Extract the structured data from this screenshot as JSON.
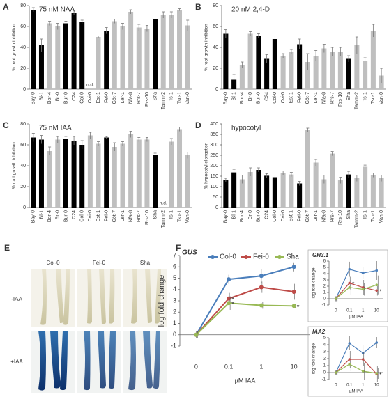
{
  "chart_data": [
    {
      "type": "bar",
      "panel": "A",
      "title": "75 nM NAA",
      "ylabel": "% root growth inhibition",
      "categories": [
        "Bay-0",
        "Bl-1",
        "Bor-4",
        "Br-0",
        "Bur-0",
        "C24",
        "Col-0",
        "Cvi-0",
        "Est-1",
        "Fei-0",
        "Göt-7",
        "Ler-1",
        "Nfa-8",
        "Rrs-7",
        "Rrs-10",
        "Sha",
        "Tamm-2",
        "Ts-1",
        "Tsu-1",
        "Van-0"
      ],
      "values": [
        76,
        42,
        63,
        60,
        63,
        73,
        64,
        null,
        50,
        56,
        65,
        60,
        74,
        59,
        58,
        67,
        71,
        71,
        76,
        61
      ],
      "errors": [
        2,
        6,
        2,
        3,
        2,
        2,
        2,
        null,
        1,
        3,
        2,
        3,
        2,
        3,
        3,
        2,
        3,
        3,
        1,
        5
      ],
      "value_labels": [
        null,
        null,
        null,
        null,
        null,
        null,
        null,
        "n.d.",
        null,
        null,
        null,
        null,
        null,
        null,
        null,
        null,
        null,
        null,
        null,
        null
      ],
      "colors": [
        "#000000",
        "#000000",
        "#bfbfbf",
        "#bfbfbf",
        "#000000",
        "#000000",
        "#000000",
        "#bfbfbf",
        "#bfbfbf",
        "#000000",
        "#bfbfbf",
        "#bfbfbf",
        "#bfbfbf",
        "#bfbfbf",
        "#bfbfbf",
        "#000000",
        "#bfbfbf",
        "#bfbfbf",
        "#bfbfbf",
        "#bfbfbf"
      ],
      "ylim": [
        0,
        80
      ],
      "yticks": [
        0,
        20,
        40,
        60,
        80
      ]
    },
    {
      "type": "bar",
      "panel": "B",
      "title": "20 nM 2,4-D",
      "ylabel": "% root growth inhibition",
      "categories": [
        "Bay-0",
        "Bl-1",
        "Bor-4",
        "Br-0",
        "Bur-0",
        "C24",
        "Col-0",
        "Cvi-0",
        "Est-1",
        "Fei-0",
        "Göt-7",
        "Ler-1",
        "Nfa-8",
        "Rrs-7",
        "Rrs-10",
        "Sha",
        "Tamm-2",
        "Ts-1",
        "Tsu-1",
        "Van-0"
      ],
      "values": [
        53,
        9,
        23,
        53,
        51,
        29,
        48,
        32,
        36,
        43,
        26,
        32,
        39,
        36,
        36,
        29,
        42,
        27,
        56,
        13
      ],
      "errors": [
        4,
        5,
        3,
        2,
        2,
        4,
        3,
        2,
        2,
        5,
        8,
        5,
        4,
        4,
        4,
        3,
        8,
        3,
        6,
        7
      ],
      "colors": [
        "#000000",
        "#000000",
        "#bfbfbf",
        "#bfbfbf",
        "#000000",
        "#000000",
        "#000000",
        "#bfbfbf",
        "#bfbfbf",
        "#000000",
        "#bfbfbf",
        "#bfbfbf",
        "#bfbfbf",
        "#bfbfbf",
        "#bfbfbf",
        "#000000",
        "#bfbfbf",
        "#bfbfbf",
        "#bfbfbf",
        "#bfbfbf"
      ],
      "ylim": [
        0,
        80
      ],
      "yticks": [
        0,
        20,
        40,
        60,
        80
      ]
    },
    {
      "type": "bar",
      "panel": "C",
      "title": "75 nM IAA",
      "ylabel": "% root growth inhibition",
      "categories": [
        "Bay-0",
        "Bl-1",
        "Bor-4",
        "Br-0",
        "Bur-0",
        "C24",
        "Col-0",
        "Cvi-0",
        "Est-1",
        "Fei-0",
        "Göt-7",
        "Ler-1",
        "Nfa-8",
        "Rrs-7",
        "Rrs-10",
        "Sha",
        "Tamm-2",
        "Ts-1",
        "Tsu-1",
        "Van-0"
      ],
      "values": [
        67,
        65,
        54,
        65,
        66,
        64,
        60,
        69,
        61,
        67,
        58,
        61,
        70,
        65,
        65,
        50,
        null,
        63,
        75,
        50
      ],
      "errors": [
        4,
        4,
        4,
        3,
        2,
        4,
        4,
        3,
        2,
        1,
        4,
        2,
        3,
        2,
        2,
        2,
        null,
        3,
        2,
        3
      ],
      "value_labels": [
        null,
        null,
        null,
        null,
        null,
        null,
        null,
        null,
        null,
        null,
        null,
        null,
        null,
        null,
        null,
        null,
        "n.d.",
        null,
        null,
        null
      ],
      "colors": [
        "#000000",
        "#000000",
        "#bfbfbf",
        "#bfbfbf",
        "#000000",
        "#000000",
        "#000000",
        "#bfbfbf",
        "#bfbfbf",
        "#000000",
        "#bfbfbf",
        "#bfbfbf",
        "#bfbfbf",
        "#bfbfbf",
        "#bfbfbf",
        "#000000",
        "#bfbfbf",
        "#bfbfbf",
        "#bfbfbf",
        "#bfbfbf"
      ],
      "ylim": [
        0,
        80
      ],
      "yticks": [
        0,
        20,
        40,
        60,
        80
      ]
    },
    {
      "type": "bar",
      "panel": "D",
      "title": "hypocotyl",
      "ylabel": "% hypocotyl elongation",
      "categories": [
        "Bay-0",
        "Bl-1",
        "Bor-4",
        "Br-0",
        "Bur-0",
        "C24",
        "Col-0",
        "Cvi-0",
        "Est-1",
        "Fei-0",
        "Göt-7",
        "Ler-1",
        "Nfa-8",
        "Rrs-7",
        "Rrs-10",
        "Sha",
        "Tamm-2",
        "Ts-1",
        "Tsu-1",
        "Van-0"
      ],
      "values": [
        130,
        168,
        135,
        170,
        180,
        152,
        145,
        165,
        158,
        115,
        370,
        215,
        135,
        258,
        130,
        158,
        140,
        195,
        155,
        140
      ],
      "errors": [
        10,
        15,
        20,
        20,
        10,
        10,
        10,
        10,
        10,
        10,
        10,
        15,
        20,
        10,
        15,
        15,
        15,
        8,
        10,
        15
      ],
      "colors": [
        "#000000",
        "#000000",
        "#bfbfbf",
        "#bfbfbf",
        "#000000",
        "#000000",
        "#000000",
        "#bfbfbf",
        "#bfbfbf",
        "#000000",
        "#bfbfbf",
        "#bfbfbf",
        "#bfbfbf",
        "#bfbfbf",
        "#bfbfbf",
        "#000000",
        "#bfbfbf",
        "#bfbfbf",
        "#bfbfbf",
        "#bfbfbf"
      ],
      "ylim": [
        0,
        400
      ],
      "yticks": [
        0,
        50,
        100,
        150,
        200,
        250,
        300,
        350,
        400
      ]
    },
    {
      "type": "line",
      "panel": "F",
      "title": "GUS",
      "ylabel": "log fold change",
      "xlabel": "µM IAA",
      "categories": [
        "0",
        "0.1",
        "1",
        "10"
      ],
      "ylim": [
        -1,
        7
      ],
      "yticks": [
        -1,
        0,
        1,
        2,
        3,
        4,
        5,
        6,
        7
      ],
      "legend": true,
      "series": [
        {
          "name": "Col-0",
          "color": "#4a7ebb",
          "values": [
            0,
            4.9,
            5.2,
            6.0
          ],
          "errors": [
            0.3,
            0.4,
            0.6,
            0.4
          ]
        },
        {
          "name": "Fei-0",
          "color": "#be4b48",
          "values": [
            0,
            3.2,
            4.2,
            3.8
          ],
          "errors": [
            0.3,
            0.5,
            0.5,
            0.7
          ],
          "significance": [
            null,
            "*",
            null,
            null
          ]
        },
        {
          "name": "Sha",
          "color": "#98b954",
          "values": [
            0,
            2.8,
            2.6,
            2.55
          ],
          "errors": [
            0.3,
            0.6,
            0.3,
            0.2
          ],
          "significance": [
            null,
            "*",
            null,
            "*"
          ]
        }
      ]
    },
    {
      "type": "line",
      "title": "GH3.1",
      "ylabel": "log fold change",
      "xlabel": "µM IAA",
      "categories": [
        "0",
        "0.1",
        "1",
        "10"
      ],
      "ylim": [
        -1,
        6
      ],
      "yticks": [
        -1,
        0,
        1,
        2,
        3,
        4,
        5,
        6
      ],
      "legend": false,
      "series": [
        {
          "color": "#4a7ebb",
          "values": [
            0,
            4.7,
            4.1,
            4.5
          ],
          "errors": [
            0.4,
            1.2,
            1.0,
            1.5
          ]
        },
        {
          "color": "#be4b48",
          "values": [
            0,
            2.5,
            1.8,
            1.3
          ],
          "errors": [
            0.4,
            1.0,
            1.2,
            0.8
          ],
          "significance": [
            null,
            "*",
            null,
            "*"
          ]
        },
        {
          "color": "#98b954",
          "values": [
            0,
            1.8,
            1.5,
            2.2
          ],
          "errors": [
            0.4,
            1.2,
            1.0,
            1.5
          ]
        }
      ]
    },
    {
      "type": "line",
      "title": "IAA2",
      "ylabel": "log fold change",
      "xlabel": "µM IAA",
      "categories": [
        "0",
        "0.1",
        "1",
        "10"
      ],
      "ylim": [
        -1,
        5
      ],
      "yticks": [
        -1,
        0,
        1,
        2,
        3,
        4,
        5
      ],
      "legend": false,
      "series": [
        {
          "color": "#4a7ebb",
          "values": [
            0,
            4.2,
            2.8,
            4.3
          ],
          "errors": [
            0.3,
            1.0,
            1.2,
            0.8
          ]
        },
        {
          "color": "#be4b48",
          "values": [
            0,
            1.9,
            1.9,
            -0.2
          ],
          "errors": [
            0.3,
            1.2,
            1.0,
            1.2
          ],
          "significance": [
            null,
            null,
            null,
            "*"
          ]
        },
        {
          "color": "#98b954",
          "values": [
            0,
            1.2,
            0.2,
            -0.1
          ],
          "errors": [
            0.3,
            1.0,
            1.2,
            0.8
          ],
          "significance": [
            null,
            null,
            null,
            "*"
          ]
        }
      ]
    }
  ],
  "panel_e": {
    "panel": "E",
    "columns": [
      "Col-0",
      "Fei-0",
      "Sha"
    ],
    "rows": [
      "-IAA",
      "+IAA"
    ]
  }
}
